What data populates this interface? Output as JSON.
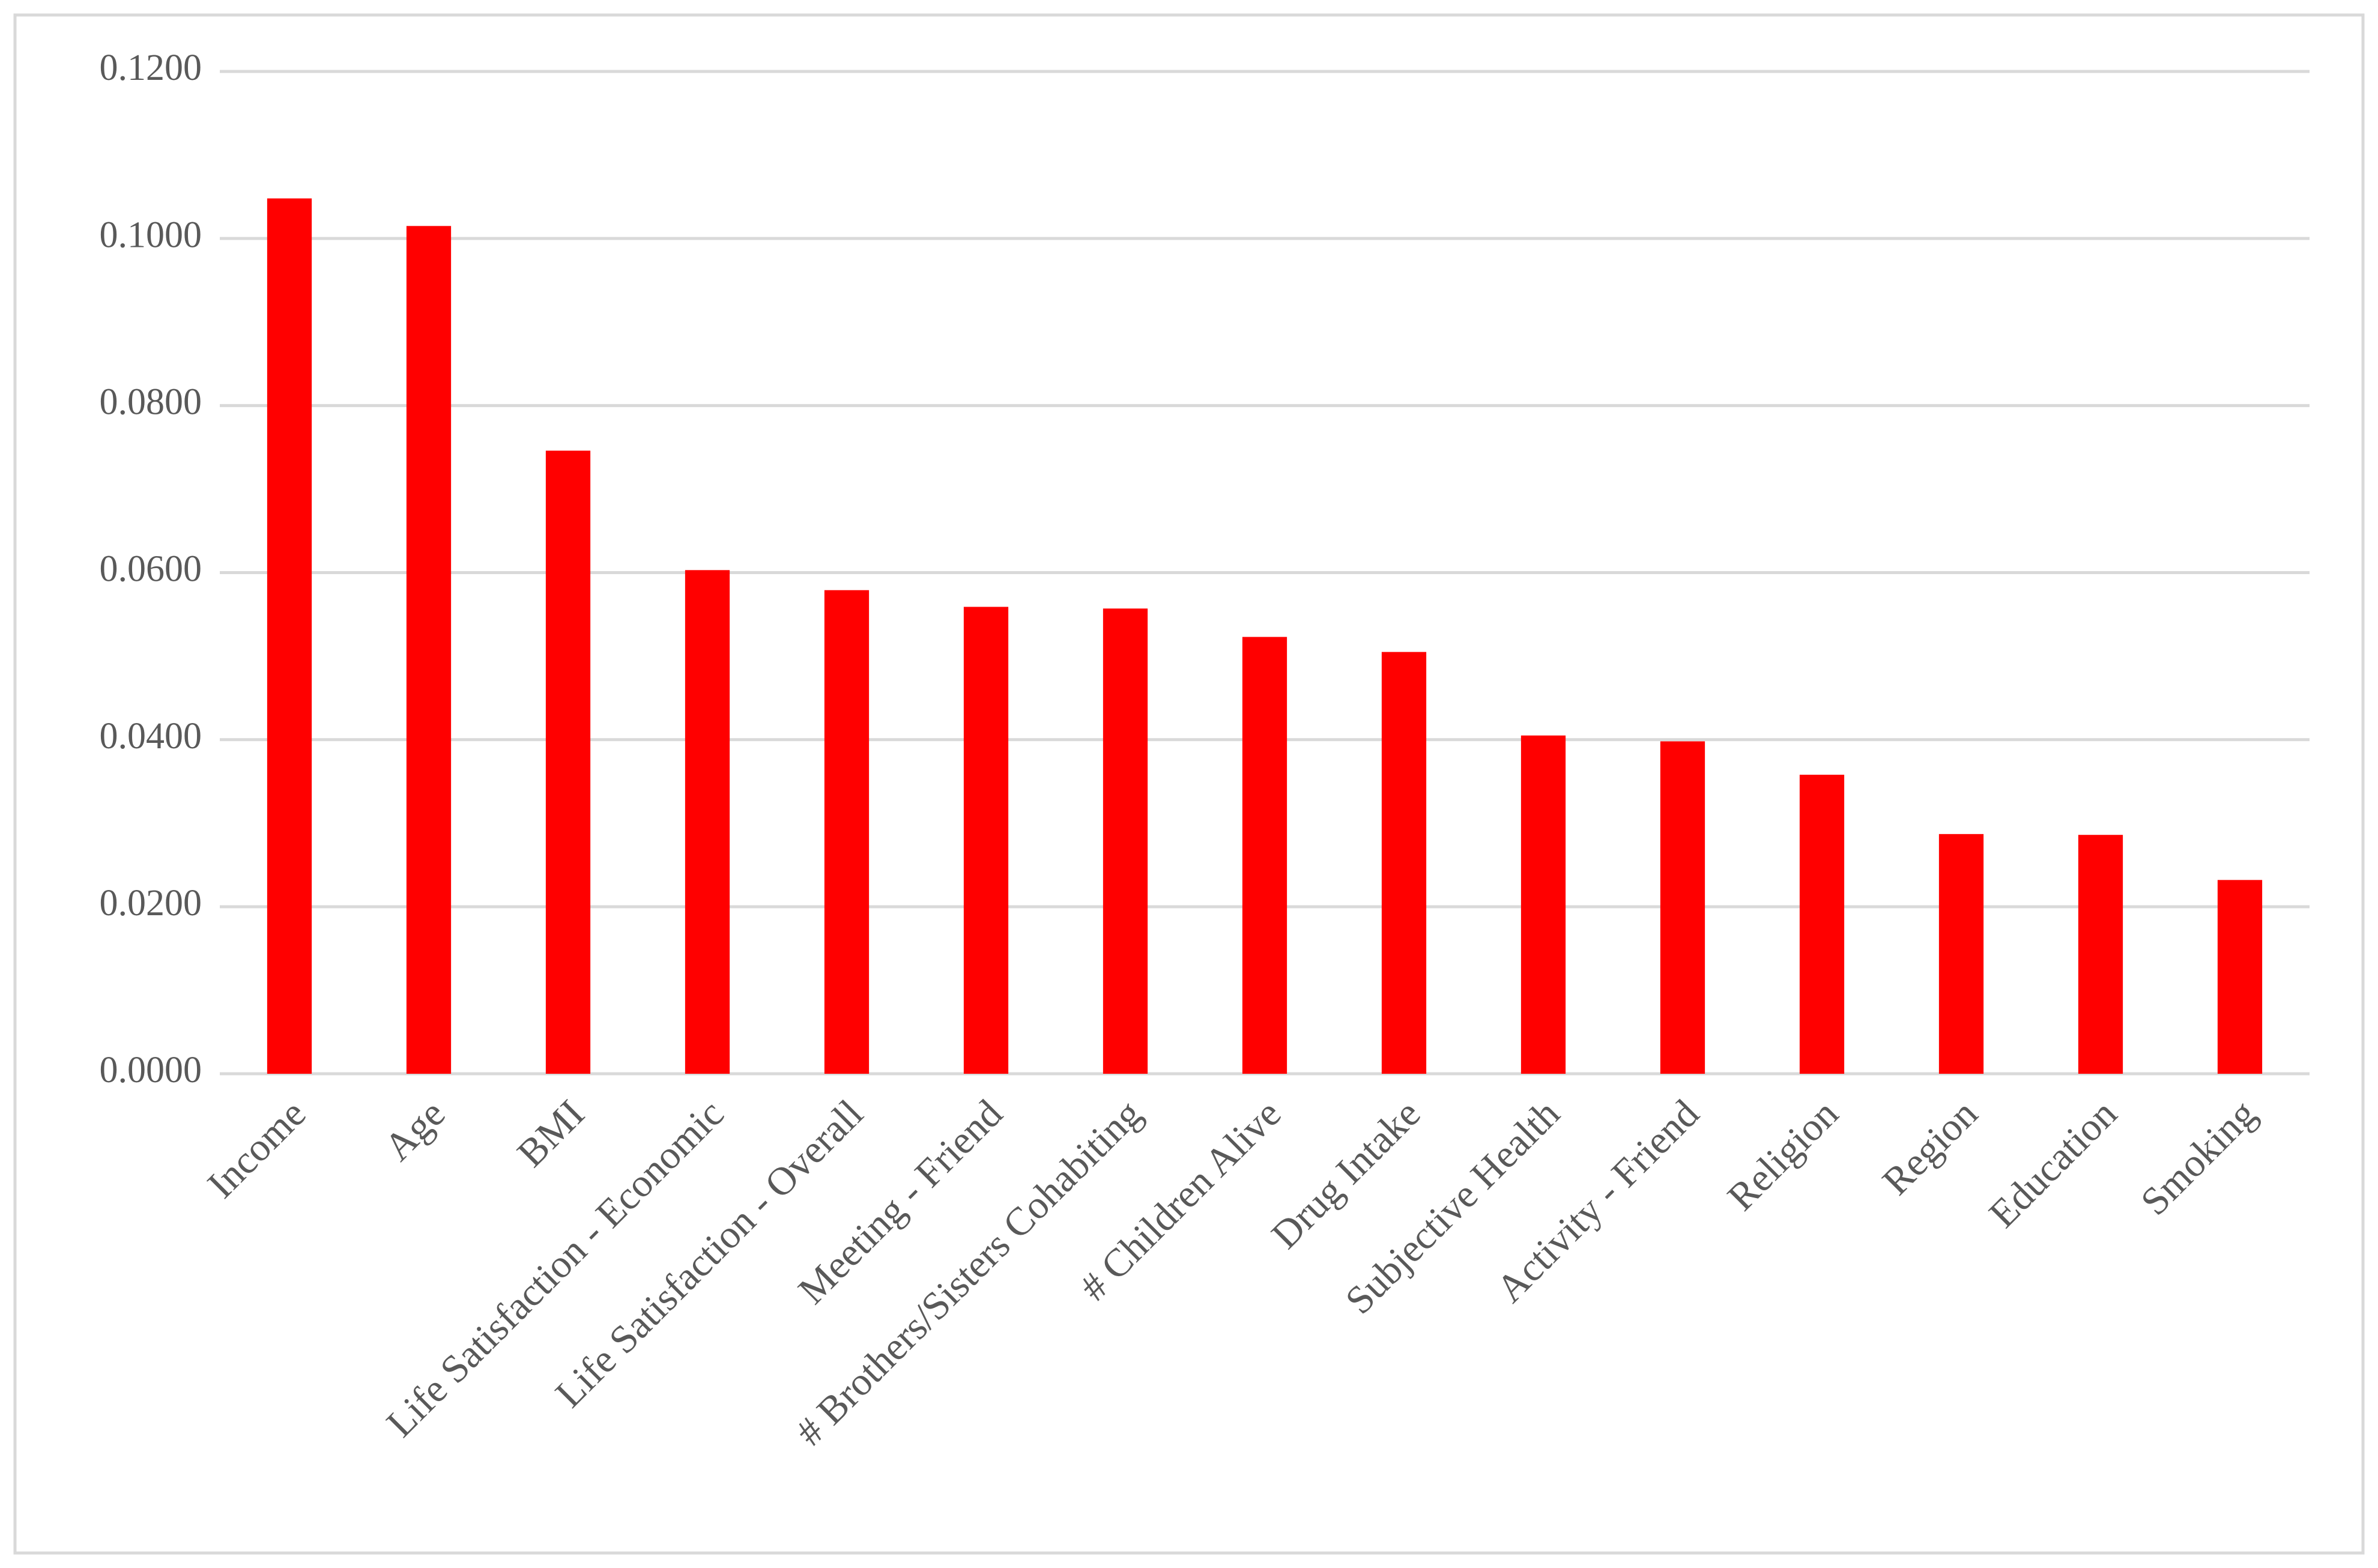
{
  "chart_data": {
    "type": "bar",
    "categories": [
      "Income",
      "Age",
      "BMI",
      "Life Satisfaction - Economic",
      "Life Satisfaction - Overall",
      "Meeting - Friend",
      "# Brothers/Sisters Cohabiting",
      "# Children Alive",
      "Drug Intake",
      "Subjective Health",
      "Activity - Friend",
      "Religion",
      "Region",
      "Education",
      "Smoking"
    ],
    "values": [
      0.1048,
      0.1015,
      0.0746,
      0.0603,
      0.0579,
      0.0559,
      0.0557,
      0.0523,
      0.0505,
      0.0405,
      0.0398,
      0.0358,
      0.0287,
      0.0286,
      0.0232
    ],
    "color": "#ff0000",
    "ylim": [
      0,
      0.12
    ],
    "yticks": [
      {
        "value": 0,
        "label": "0.0000"
      },
      {
        "value": 0.02,
        "label": "0.0200"
      },
      {
        "value": 0.04,
        "label": "0.0400"
      },
      {
        "value": 0.06,
        "label": "0.0600"
      },
      {
        "value": 0.08,
        "label": "0.0800"
      },
      {
        "value": 0.1,
        "label": "0.1000"
      },
      {
        "value": 0.12,
        "label": "0.1200"
      }
    ],
    "grid": true
  }
}
